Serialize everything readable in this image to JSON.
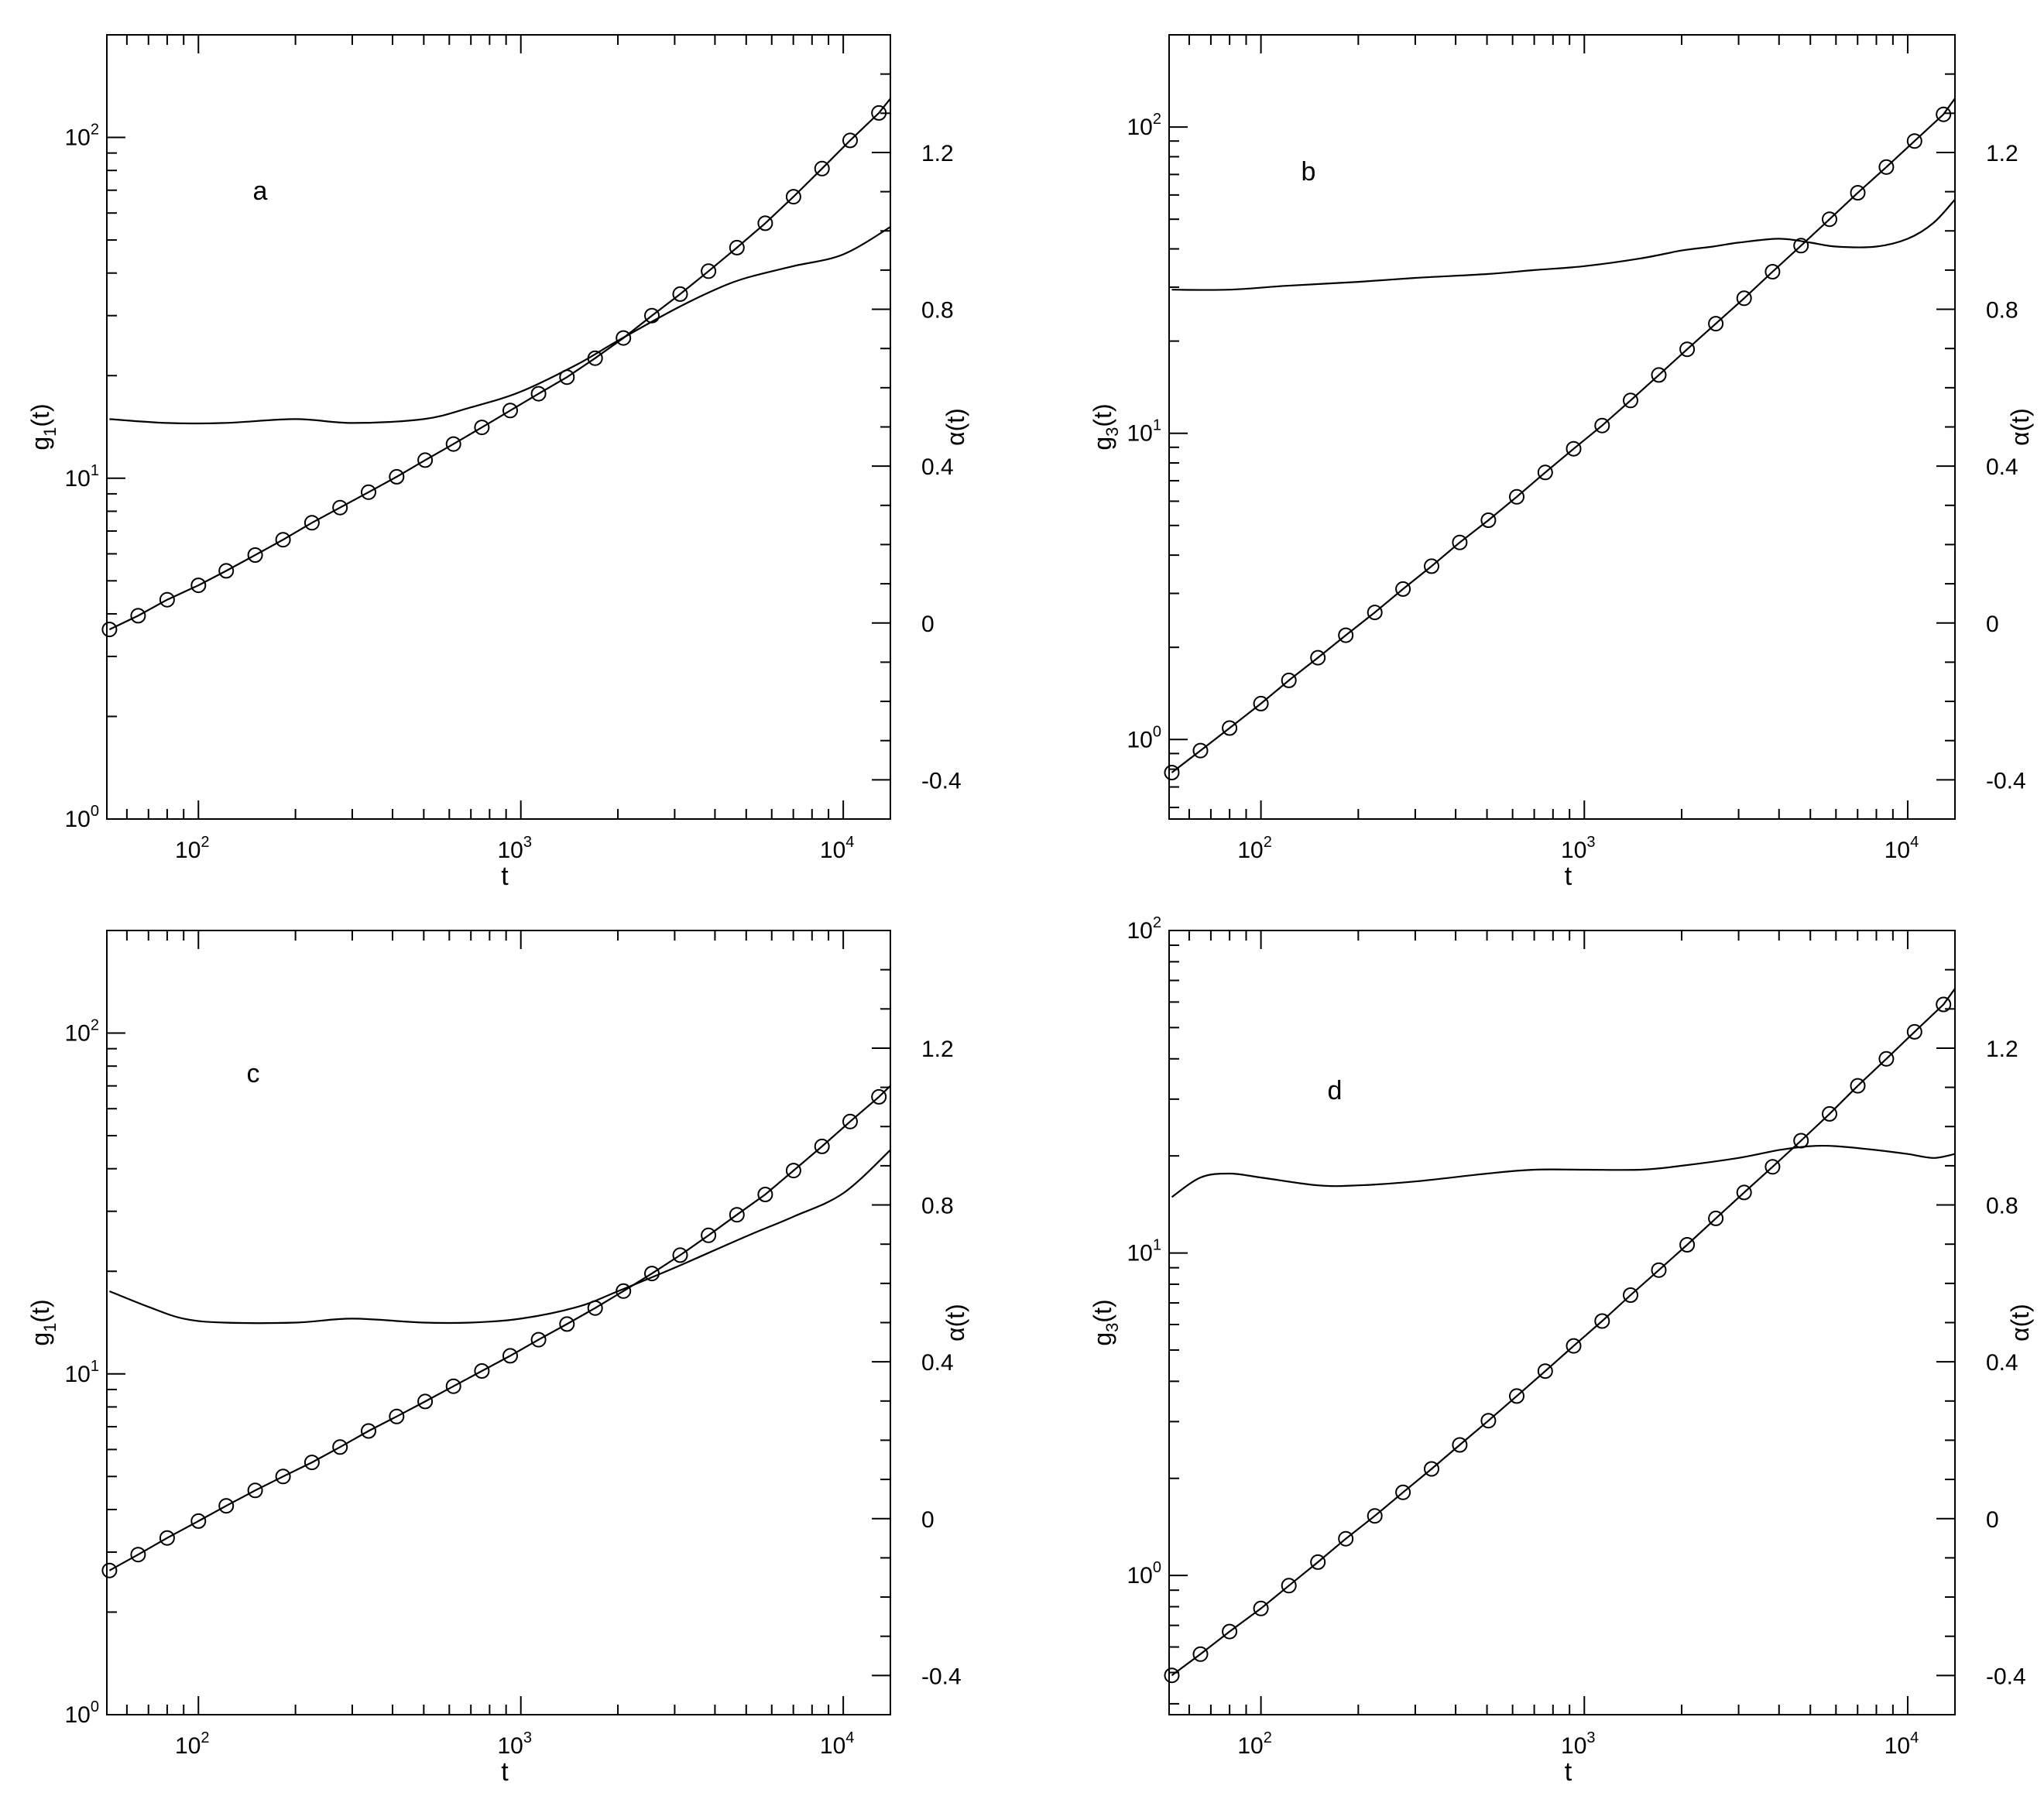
{
  "chart_data": [
    {
      "type": "line",
      "panel_label": "a",
      "xlabel": "t",
      "ylabel_main": "g",
      "ylabel_sub": "1",
      "ylabel_suffix": "(t)",
      "y2label": "α(t)",
      "xscale": "log",
      "yscale": "log",
      "xlim": [
        52,
        14000
      ],
      "ylim": [
        1,
        200
      ],
      "y2lim": [
        -0.5,
        1.5
      ],
      "x_ticks": [
        100,
        1000,
        10000
      ],
      "x_tick_exponents": [
        "2",
        "3",
        "4"
      ],
      "y_ticks": [
        1,
        10,
        100
      ],
      "y_tick_exponents": [
        "0",
        "1",
        "2"
      ],
      "y2_ticks": [
        -0.4,
        0,
        0.4,
        0.8,
        1.2
      ],
      "y2_tick_labels": [
        "-0.4",
        "0",
        "0.4",
        "0.8",
        "1.2"
      ],
      "series": [
        {
          "type": "line+markers",
          "axis": "left",
          "x": [
            53,
            65,
            80,
            100,
            122,
            150,
            183,
            225,
            275,
            337,
            412,
            505,
            618,
            757,
            927,
            1135,
            1390,
            1700,
            2080,
            2550,
            3120,
            3820,
            4680,
            5730,
            7010,
            8590,
            10500,
            12900
          ],
          "y": [
            3.6,
            3.95,
            4.4,
            4.85,
            5.35,
            5.95,
            6.6,
            7.4,
            8.2,
            9.1,
            10.1,
            11.3,
            12.6,
            14.1,
            15.8,
            17.7,
            19.8,
            22.5,
            25.8,
            30.0,
            34.7,
            40.5,
            47.5,
            56.0,
            67.0,
            81.0,
            98.0,
            118.0
          ],
          "line_end": [
            14000,
            130
          ]
        },
        {
          "type": "line",
          "axis": "right",
          "x": [
            53,
            80,
            120,
            200,
            300,
            500,
            700,
            1000,
            1500,
            2000,
            3000,
            4000,
            5000,
            7000,
            10000,
            14000
          ],
          "y": [
            0.52,
            0.51,
            0.51,
            0.52,
            0.51,
            0.52,
            0.55,
            0.59,
            0.66,
            0.72,
            0.8,
            0.85,
            0.88,
            0.91,
            0.94,
            1.01
          ]
        }
      ]
    },
    {
      "type": "line",
      "panel_label": "b",
      "xlabel": "t",
      "ylabel_main": "g",
      "ylabel_sub": "3",
      "ylabel_suffix": "(t)",
      "y2label": "α(t)",
      "xscale": "log",
      "yscale": "log",
      "xlim": [
        52,
        14000
      ],
      "ylim": [
        0.55,
        200
      ],
      "y2lim": [
        -0.5,
        1.5
      ],
      "x_ticks": [
        100,
        1000,
        10000
      ],
      "x_tick_exponents": [
        "2",
        "3",
        "4"
      ],
      "y_ticks": [
        1,
        10,
        100
      ],
      "y_tick_exponents": [
        "0",
        "1",
        "2"
      ],
      "y2_ticks": [
        -0.4,
        0,
        0.4,
        0.8,
        1.2
      ],
      "y2_tick_labels": [
        "-0.4",
        "0",
        "0.4",
        "0.8",
        "1.2"
      ],
      "series": [
        {
          "type": "line+markers",
          "axis": "left",
          "x": [
            53,
            65,
            80,
            100,
            122,
            150,
            183,
            225,
            275,
            337,
            412,
            505,
            618,
            757,
            927,
            1135,
            1390,
            1700,
            2080,
            2550,
            3120,
            3820,
            4680,
            5730,
            7010,
            8590,
            10500,
            12900
          ],
          "y": [
            0.78,
            0.92,
            1.09,
            1.31,
            1.56,
            1.85,
            2.19,
            2.6,
            3.1,
            3.68,
            4.4,
            5.2,
            6.2,
            7.45,
            8.9,
            10.6,
            12.8,
            15.5,
            18.8,
            22.8,
            27.6,
            33.7,
            41.0,
            50.0,
            61.0,
            74.0,
            90.0,
            110.0
          ],
          "line_end": [
            14000,
            124
          ]
        },
        {
          "type": "line",
          "axis": "right",
          "x": [
            53,
            80,
            120,
            200,
            300,
            500,
            700,
            1000,
            1500,
            2000,
            2500,
            3000,
            4000,
            5000,
            6000,
            8000,
            10000,
            12000,
            14000
          ],
          "y": [
            0.85,
            0.85,
            0.86,
            0.87,
            0.88,
            0.89,
            0.9,
            0.91,
            0.93,
            0.95,
            0.96,
            0.97,
            0.98,
            0.97,
            0.96,
            0.96,
            0.98,
            1.02,
            1.08
          ]
        }
      ]
    },
    {
      "type": "line",
      "panel_label": "c",
      "xlabel": "t",
      "ylabel_main": "g",
      "ylabel_sub": "1",
      "ylabel_suffix": "(t)",
      "y2label": "α(t)",
      "xscale": "log",
      "yscale": "log",
      "xlim": [
        52,
        14000
      ],
      "ylim": [
        1,
        200
      ],
      "y2lim": [
        -0.5,
        1.5
      ],
      "x_ticks": [
        100,
        1000,
        10000
      ],
      "x_tick_exponents": [
        "2",
        "3",
        "4"
      ],
      "y_ticks": [
        1,
        10,
        100
      ],
      "y_tick_exponents": [
        "0",
        "1",
        "2"
      ],
      "y2_ticks": [
        -0.4,
        0,
        0.4,
        0.8,
        1.2
      ],
      "y2_tick_labels": [
        "-0.4",
        "0",
        "0.4",
        "0.8",
        "1.2"
      ],
      "series": [
        {
          "type": "line+markers",
          "axis": "left",
          "x": [
            53,
            65,
            80,
            100,
            122,
            150,
            183,
            225,
            275,
            337,
            412,
            505,
            618,
            757,
            927,
            1135,
            1390,
            1700,
            2080,
            2550,
            3120,
            3820,
            4680,
            5730,
            7010,
            8590,
            10500,
            12900
          ],
          "y": [
            2.65,
            2.95,
            3.3,
            3.7,
            4.1,
            4.55,
            5.0,
            5.5,
            6.1,
            6.8,
            7.5,
            8.3,
            9.2,
            10.2,
            11.3,
            12.6,
            14.0,
            15.6,
            17.5,
            19.7,
            22.3,
            25.5,
            29.3,
            33.6,
            39.5,
            46.5,
            55.0,
            65.0
          ],
          "line_end": [
            14000,
            70
          ]
        },
        {
          "type": "line",
          "axis": "right",
          "x": [
            53,
            70,
            90,
            120,
            200,
            300,
            500,
            700,
            1000,
            1500,
            2000,
            3000,
            5000,
            7000,
            10000,
            14000
          ],
          "y": [
            0.58,
            0.54,
            0.51,
            0.5,
            0.5,
            0.51,
            0.5,
            0.5,
            0.51,
            0.54,
            0.58,
            0.64,
            0.72,
            0.77,
            0.83,
            0.94
          ]
        }
      ]
    },
    {
      "type": "line",
      "panel_label": "d",
      "xlabel": "t",
      "ylabel_main": "g",
      "ylabel_sub": "3",
      "ylabel_suffix": "(t)",
      "y2label": "α(t)",
      "xscale": "log",
      "yscale": "log",
      "xlim": [
        52,
        14000
      ],
      "ylim": [
        0.37,
        100
      ],
      "y2lim": [
        -0.5,
        1.5
      ],
      "x_ticks": [
        100,
        1000,
        10000
      ],
      "x_tick_exponents": [
        "2",
        "3",
        "4"
      ],
      "y_ticks": [
        1,
        10,
        100
      ],
      "y_tick_exponents": [
        "0",
        "1",
        "2"
      ],
      "y2_ticks": [
        -0.4,
        0,
        0.4,
        0.8,
        1.2
      ],
      "y2_tick_labels": [
        "-0.4",
        "0",
        "0.4",
        "0.8",
        "1.2"
      ],
      "series": [
        {
          "type": "line+markers",
          "axis": "left",
          "x": [
            53,
            65,
            80,
            100,
            122,
            150,
            183,
            225,
            275,
            337,
            412,
            505,
            618,
            757,
            927,
            1135,
            1390,
            1700,
            2080,
            2550,
            3120,
            3820,
            4680,
            5730,
            7010,
            8590,
            10500,
            12900
          ],
          "y": [
            0.49,
            0.57,
            0.67,
            0.79,
            0.93,
            1.1,
            1.3,
            1.53,
            1.81,
            2.14,
            2.54,
            3.02,
            3.6,
            4.3,
            5.15,
            6.15,
            7.4,
            8.85,
            10.6,
            12.8,
            15.4,
            18.5,
            22.3,
            27.0,
            33.0,
            40.0,
            48.5,
            59.0
          ],
          "line_end": [
            14000,
            66
          ]
        },
        {
          "type": "line",
          "axis": "right",
          "x": [
            53,
            65,
            80,
            100,
            150,
            200,
            300,
            500,
            700,
            1000,
            1500,
            2000,
            3000,
            4000,
            5000,
            6000,
            8000,
            10000,
            12000,
            14000
          ],
          "y": [
            0.82,
            0.87,
            0.88,
            0.87,
            0.85,
            0.85,
            0.86,
            0.88,
            0.89,
            0.89,
            0.89,
            0.9,
            0.92,
            0.94,
            0.95,
            0.95,
            0.94,
            0.93,
            0.92,
            0.93
          ]
        }
      ]
    }
  ]
}
